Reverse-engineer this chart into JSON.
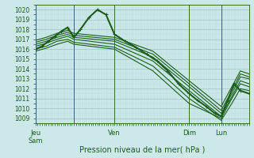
{
  "title": "Pression niveau de la mer( hPa )",
  "bg_color": "#cce8e8",
  "plot_bg_color": "#cce8e8",
  "grid_major_color": "#99bbbb",
  "grid_minor_color": "#bbdddd",
  "line_color": "#1a5e1a",
  "ylim": [
    1008.5,
    1020.5
  ],
  "yticks": [
    1009,
    1010,
    1011,
    1012,
    1013,
    1014,
    1015,
    1016,
    1017,
    1018,
    1019,
    1020
  ],
  "series": [
    {
      "x": [
        0.0,
        0.03,
        0.06,
        0.09,
        0.12,
        0.15,
        0.18,
        0.21,
        0.25,
        0.29,
        0.33,
        0.37,
        0.42,
        0.47,
        0.52,
        0.57,
        0.62,
        0.67,
        0.72,
        0.76,
        0.8,
        0.84,
        0.87,
        0.9,
        0.93,
        0.96,
        1.0
      ],
      "y": [
        1016.0,
        1016.3,
        1016.8,
        1017.3,
        1017.8,
        1018.2,
        1017.2,
        1018.0,
        1019.2,
        1020.0,
        1019.5,
        1017.5,
        1016.8,
        1016.2,
        1015.5,
        1014.8,
        1013.8,
        1012.5,
        1011.5,
        1010.8,
        1010.2,
        1009.5,
        1009.2,
        1010.8,
        1012.5,
        1011.8,
        1011.5
      ],
      "lw": 1.5,
      "marker": true
    },
    {
      "x": [
        0.0,
        0.05,
        0.1,
        0.15,
        0.18,
        0.37,
        0.55,
        0.72,
        0.87,
        0.92,
        0.96,
        1.0
      ],
      "y": [
        1016.5,
        1016.8,
        1017.2,
        1017.5,
        1017.2,
        1016.8,
        1015.2,
        1012.2,
        1009.5,
        1011.5,
        1013.2,
        1013.0
      ],
      "lw": 0.8,
      "marker": false
    },
    {
      "x": [
        0.0,
        0.05,
        0.1,
        0.15,
        0.18,
        0.37,
        0.55,
        0.72,
        0.87,
        0.92,
        0.96,
        1.0
      ],
      "y": [
        1016.3,
        1016.6,
        1017.0,
        1017.3,
        1017.0,
        1016.5,
        1014.8,
        1011.8,
        1009.2,
        1011.2,
        1012.8,
        1012.5
      ],
      "lw": 0.8,
      "marker": false
    },
    {
      "x": [
        0.0,
        0.05,
        0.1,
        0.15,
        0.18,
        0.37,
        0.55,
        0.72,
        0.87,
        0.92,
        0.96,
        1.0
      ],
      "y": [
        1016.7,
        1017.0,
        1017.4,
        1017.7,
        1017.4,
        1017.0,
        1015.5,
        1012.5,
        1009.8,
        1011.8,
        1013.5,
        1013.2
      ],
      "lw": 0.8,
      "marker": false
    },
    {
      "x": [
        0.0,
        0.05,
        0.1,
        0.15,
        0.18,
        0.37,
        0.55,
        0.72,
        0.87,
        0.92,
        0.96,
        1.0
      ],
      "y": [
        1016.0,
        1016.3,
        1016.8,
        1017.0,
        1016.7,
        1016.2,
        1014.3,
        1011.0,
        1008.8,
        1010.5,
        1012.0,
        1011.8
      ],
      "lw": 0.8,
      "marker": false
    },
    {
      "x": [
        0.0,
        0.05,
        0.1,
        0.15,
        0.18,
        0.37,
        0.55,
        0.72,
        0.87,
        0.92,
        0.96,
        1.0
      ],
      "y": [
        1016.9,
        1017.2,
        1017.6,
        1017.9,
        1017.6,
        1017.2,
        1015.8,
        1012.8,
        1010.2,
        1012.2,
        1013.8,
        1013.5
      ],
      "lw": 0.8,
      "marker": false
    },
    {
      "x": [
        0.0,
        0.05,
        0.1,
        0.15,
        0.18,
        0.37,
        0.55,
        0.72,
        0.87,
        0.92,
        0.96,
        1.0
      ],
      "y": [
        1015.8,
        1016.1,
        1016.5,
        1016.8,
        1016.5,
        1016.0,
        1013.8,
        1010.5,
        1009.0,
        1011.0,
        1012.5,
        1012.2
      ],
      "lw": 0.8,
      "marker": false
    }
  ],
  "vlines": [
    0.18,
    0.37,
    0.72,
    0.87
  ],
  "xtick_positions": [
    0.0,
    0.18,
    0.37,
    0.72,
    0.87
  ],
  "xtick_labels": [
    "Jeu\nSam",
    "",
    "Ven",
    "Dim",
    "Lun"
  ],
  "tick_color": "#1a5e1a",
  "axis_color": "#1a5e1a",
  "xlabel_fontsize": 7,
  "ytick_fontsize": 5.5,
  "xtick_fontsize": 6
}
